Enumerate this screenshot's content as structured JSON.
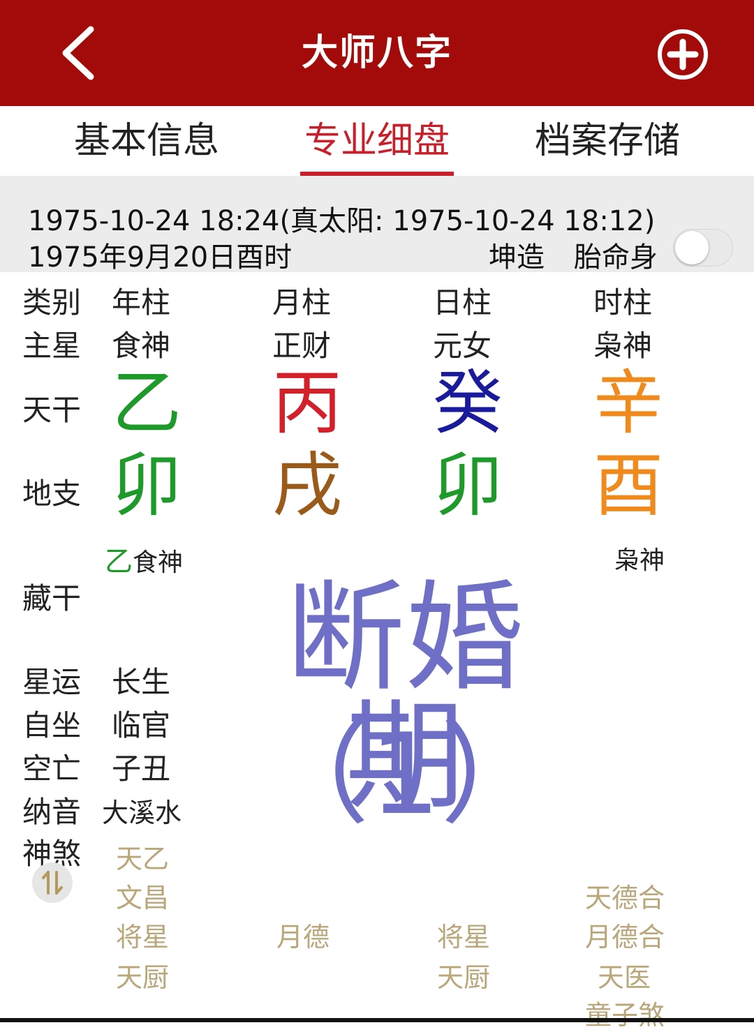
{
  "header": {
    "title": "大师八字",
    "back_icon": "chevron-left-icon",
    "add_icon": "plus-circle-icon",
    "bar_color": "#a30a0a"
  },
  "tabs": [
    {
      "label": "基本信息",
      "active": false
    },
    {
      "label": "专业细盘",
      "active": true
    },
    {
      "label": "档案存储",
      "active": false
    }
  ],
  "birth_info": {
    "datetime_line": "1975-10-24 18:24(真太阳: 1975-10-24 18:12)",
    "lunar_line": "1975年9月20日酉时",
    "gender": "坤造",
    "toggle_label": "胎命身",
    "toggle_on": false
  },
  "table": {
    "headers": {
      "label": "类别",
      "year": "年柱",
      "month": "月柱",
      "day": "日柱",
      "hour": "时柱"
    },
    "main_star": {
      "label": "主星",
      "year": "食神",
      "month": "正财",
      "day": "元女",
      "hour": "枭神"
    },
    "heavenly_stem": {
      "label": "天干",
      "year": {
        "char": "乙",
        "color": "#1e9a2a"
      },
      "month": {
        "char": "丙",
        "color": "#d4202a"
      },
      "day": {
        "char": "癸",
        "color": "#1a1a9c"
      },
      "hour": {
        "char": "辛",
        "color": "#f08a1c"
      }
    },
    "earthly_branch": {
      "label": "地支",
      "year": {
        "char": "卯",
        "color": "#1e9a2a"
      },
      "month": {
        "char": "戌",
        "color": "#9a5a1a"
      },
      "day": {
        "char": "卯",
        "color": "#1e9a2a"
      },
      "hour": {
        "char": "酉",
        "color": "#f08a1c"
      }
    },
    "hidden_stems": {
      "label": "藏干",
      "year": {
        "char": "乙",
        "god": "食神"
      },
      "hour": {
        "god": "枭神"
      }
    },
    "star_fortune": {
      "label": "星运",
      "year": "长生"
    },
    "self_sitting": {
      "label": "自坐",
      "year": "临官"
    },
    "void": {
      "label": "空亡",
      "year": "子丑"
    },
    "nayin": {
      "label": "纳音",
      "year": "大溪水"
    },
    "shensha": {
      "label": "神煞",
      "year": [
        "天乙",
        "文昌",
        "将星",
        "天厨"
      ],
      "month": [
        "月德"
      ],
      "day": [
        "将星",
        "天厨"
      ],
      "hour": [
        "天德合",
        "月德合",
        "天医",
        "童子煞"
      ]
    }
  },
  "watermark": {
    "title": "断婚期",
    "subtitle": "（1）",
    "color": "#6f6fc8"
  },
  "swap_icon": "swap-vertical-icon"
}
